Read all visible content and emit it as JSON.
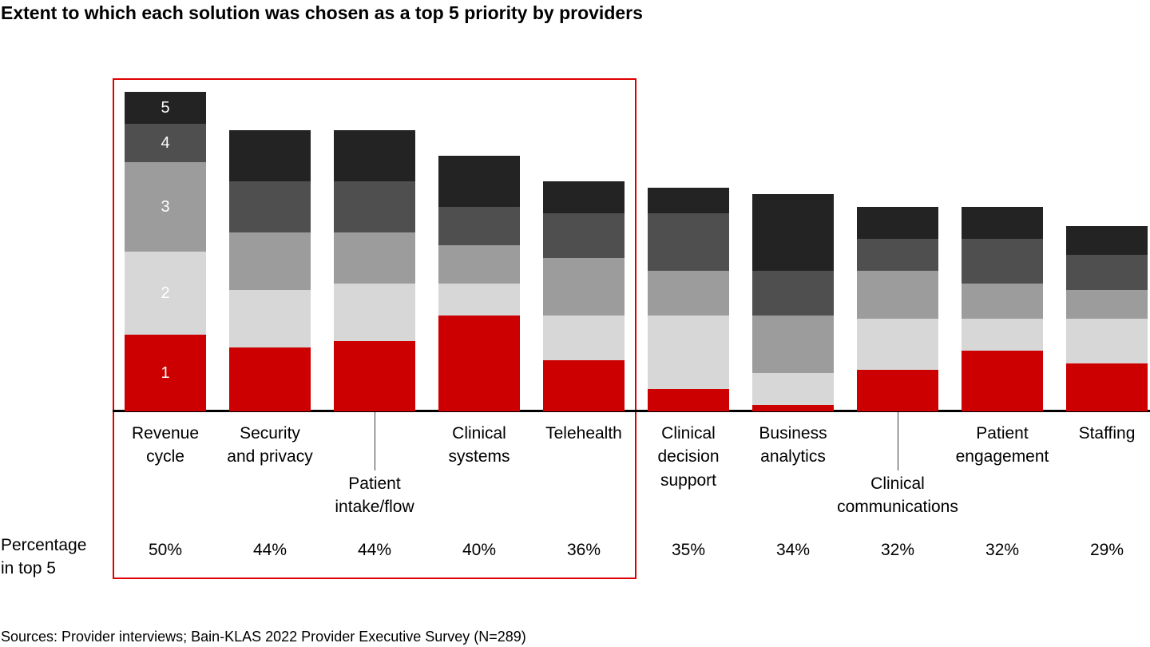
{
  "title": "Extent to which each solution was chosen as a top 5 priority by providers",
  "row_label": "Percentage\nin top 5",
  "footer": {
    "sources": "Sources: Provider interviews; Bain-KLAS 2022 Provider Executive Survey (N=289)"
  },
  "chart_data": {
    "type": "bar",
    "subtype": "stacked",
    "title": "Extent to which each solution was chosen as a top 5 priority by providers",
    "unit": "percent of providers",
    "stack_order_note": "segments stacked bottom-to-top in priority-rank order 1 (red) through 5 (black); rank numbers shown in white inside the first bar only",
    "segment_labels": [
      "1",
      "2",
      "3",
      "4",
      "5"
    ],
    "segment_colors": [
      "#cc0000",
      "#d7d7d7",
      "#9c9c9c",
      "#4f4f4f",
      "#232323"
    ],
    "ylim": [
      0,
      50
    ],
    "grid": false,
    "legend": "none",
    "highlight": {
      "description": "thin red box outlining the top five solutions and their percentages",
      "from_category": "Revenue cycle",
      "to_category": "Telehealth",
      "color": "#df0000"
    },
    "categories": [
      {
        "name": "Revenue cycle",
        "label": "Revenue\ncycle",
        "label_row": 1,
        "show_segment_labels": true,
        "total": 50,
        "total_label": "50%",
        "values": [
          12,
          13,
          14,
          6,
          5
        ]
      },
      {
        "name": "Security and privacy",
        "label": "Security\nand privacy",
        "label_row": 1,
        "total": 44,
        "total_label": "44%",
        "values": [
          10,
          9,
          9,
          8,
          8
        ]
      },
      {
        "name": "Patient intake/flow",
        "label": "Patient\nintake/flow",
        "label_row": 2,
        "total": 44,
        "total_label": "44%",
        "values": [
          11,
          9,
          8,
          8,
          8
        ]
      },
      {
        "name": "Clinical systems",
        "label": "Clinical\nsystems",
        "label_row": 1,
        "total": 40,
        "total_label": "40%",
        "values": [
          15,
          5,
          6,
          6,
          8
        ]
      },
      {
        "name": "Telehealth",
        "label": "Telehealth",
        "label_row": 1,
        "total": 36,
        "total_label": "36%",
        "values": [
          8,
          7,
          9,
          7,
          5
        ]
      },
      {
        "name": "Clinical decision support",
        "label": "Clinical\ndecision\nsupport",
        "label_row": 1,
        "total": 35,
        "total_label": "35%",
        "values": [
          3.5,
          11.5,
          7,
          9,
          4
        ]
      },
      {
        "name": "Business analytics",
        "label": "Business\nanalytics",
        "label_row": 1,
        "total": 34,
        "total_label": "34%",
        "values": [
          1,
          5,
          9,
          7,
          12
        ]
      },
      {
        "name": "Clinical communications",
        "label": "Clinical\ncommunications",
        "label_row": 2,
        "total": 32,
        "total_label": "32%",
        "values": [
          6.5,
          8,
          7.5,
          5,
          5
        ]
      },
      {
        "name": "Patient engagement",
        "label": "Patient\nengagement",
        "label_row": 1,
        "total": 32,
        "total_label": "32%",
        "values": [
          9.5,
          5,
          5.5,
          7,
          5
        ]
      },
      {
        "name": "Staffing",
        "label": "Staffing",
        "label_row": 1,
        "total": 29,
        "total_label": "29%",
        "values": [
          7.5,
          7,
          4.5,
          5.5,
          4.5
        ]
      }
    ]
  }
}
